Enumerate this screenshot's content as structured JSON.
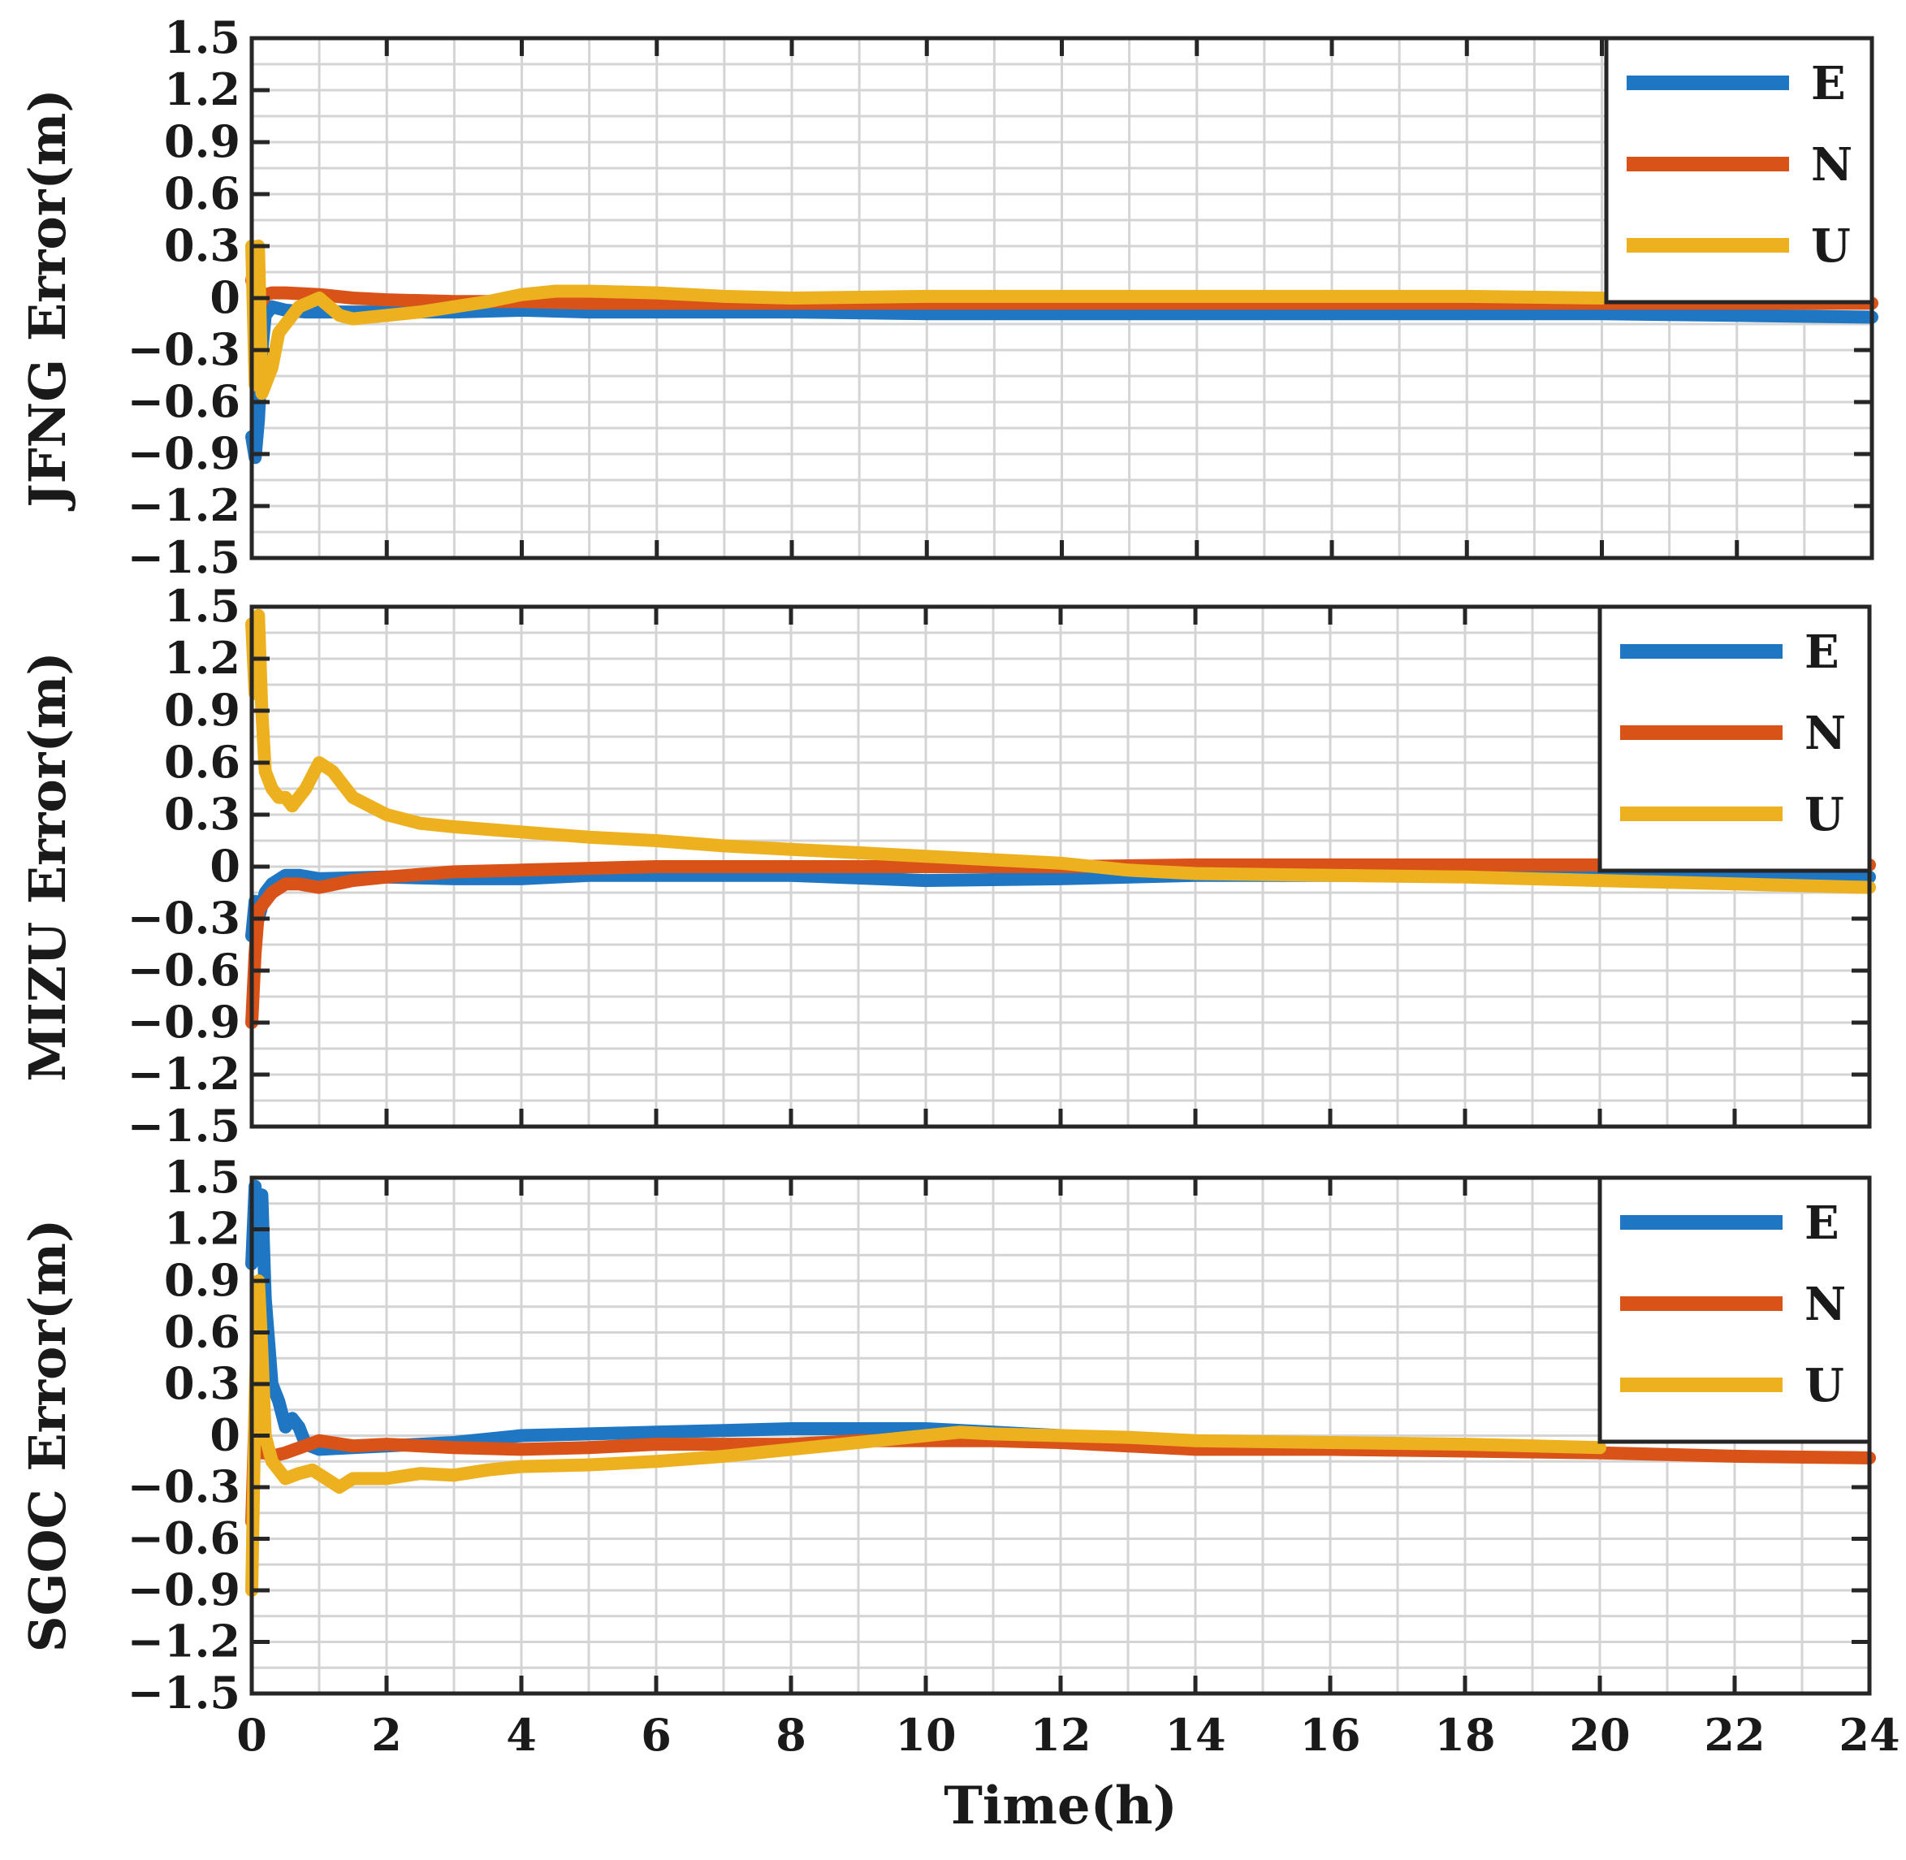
{
  "chart_data": [
    {
      "type": "line",
      "ylabel": "JFNG Error(m)",
      "xlabel": "",
      "xlim": [
        0,
        24
      ],
      "ylim": [
        -1.5,
        1.5
      ],
      "x_ticks": [
        0,
        2,
        4,
        6,
        8,
        10,
        12,
        14,
        16,
        18,
        20,
        22,
        24
      ],
      "y_ticks": [
        1.5,
        1.2,
        0.9,
        0.6,
        0.3,
        0,
        -0.3,
        -0.6,
        -0.9,
        -1.2,
        -1.5
      ],
      "y_tick_labels": [
        "1.5",
        "1.2",
        "0.9",
        "0.6",
        "0.3",
        "0",
        "−0.3",
        "−0.6",
        "−0.9",
        "−1.2",
        "−1.5"
      ],
      "x_tick_labels": [],
      "grid": true,
      "legend_position": "top-right",
      "series": [
        {
          "name": "E",
          "color": "#1f77c4",
          "x": [
            0,
            0.05,
            0.1,
            0.15,
            0.2,
            0.3,
            0.5,
            0.8,
            1.2,
            2,
            3,
            4,
            5,
            6,
            8,
            10,
            12,
            14,
            16,
            18,
            20,
            22,
            24
          ],
          "y": [
            -0.8,
            -0.92,
            -0.7,
            -0.3,
            -0.1,
            -0.05,
            -0.07,
            -0.08,
            -0.08,
            -0.08,
            -0.08,
            -0.07,
            -0.08,
            -0.08,
            -0.08,
            -0.09,
            -0.09,
            -0.09,
            -0.09,
            -0.09,
            -0.09,
            -0.1,
            -0.11
          ]
        },
        {
          "name": "N",
          "color": "#d95319",
          "x": [
            0,
            0.05,
            0.1,
            0.15,
            0.2,
            0.3,
            0.5,
            1,
            1.5,
            2,
            3,
            4,
            5,
            6,
            8,
            10,
            12,
            14,
            16,
            18,
            20,
            22,
            24
          ],
          "y": [
            0.1,
            0.22,
            0.05,
            -0.02,
            0.02,
            0.03,
            0.03,
            0.02,
            0,
            -0.01,
            -0.02,
            -0.02,
            -0.03,
            -0.03,
            -0.03,
            -0.03,
            -0.03,
            -0.03,
            -0.03,
            -0.03,
            -0.03,
            -0.03,
            -0.03
          ]
        },
        {
          "name": "U",
          "color": "#edb120",
          "x": [
            0,
            0.05,
            0.1,
            0.15,
            0.2,
            0.3,
            0.4,
            0.5,
            0.7,
            1,
            1.3,
            1.5,
            2,
            2.5,
            3,
            3.5,
            4,
            4.5,
            5,
            6,
            7,
            8,
            10,
            12,
            14,
            16,
            18,
            20
          ],
          "y": [
            0.3,
            -0.5,
            0.3,
            -0.55,
            -0.5,
            -0.4,
            -0.2,
            -0.15,
            -0.05,
            0,
            -0.1,
            -0.12,
            -0.1,
            -0.08,
            -0.05,
            -0.02,
            0.02,
            0.04,
            0.04,
            0.03,
            0.01,
            0,
            0.01,
            0.01,
            0.01,
            0.01,
            0.01,
            0
          ]
        }
      ]
    },
    {
      "type": "line",
      "ylabel": "MIZU Error(m)",
      "xlabel": "",
      "xlim": [
        0,
        24
      ],
      "ylim": [
        -1.5,
        1.5
      ],
      "x_ticks": [
        0,
        2,
        4,
        6,
        8,
        10,
        12,
        14,
        16,
        18,
        20,
        22,
        24
      ],
      "y_ticks": [
        1.5,
        1.2,
        0.9,
        0.6,
        0.3,
        0,
        -0.3,
        -0.6,
        -0.9,
        -1.2,
        -1.5
      ],
      "y_tick_labels": [
        "1.5",
        "1.2",
        "0.9",
        "0.6",
        "0.3",
        "0",
        "−0.3",
        "−0.6",
        "−0.9",
        "−1.2",
        "−1.5"
      ],
      "x_tick_labels": [],
      "grid": true,
      "legend_position": "top-right",
      "series": [
        {
          "name": "E",
          "color": "#1f77c4",
          "x": [
            0,
            0.05,
            0.1,
            0.2,
            0.3,
            0.5,
            0.7,
            1,
            2,
            3,
            4,
            5,
            6,
            8,
            10,
            12,
            14,
            16,
            18,
            20,
            22,
            24
          ],
          "y": [
            -0.4,
            -0.2,
            -0.3,
            -0.15,
            -0.1,
            -0.05,
            -0.05,
            -0.07,
            -0.06,
            -0.07,
            -0.07,
            -0.05,
            -0.05,
            -0.05,
            -0.08,
            -0.07,
            -0.05,
            -0.05,
            -0.05,
            -0.05,
            -0.05,
            -0.06
          ]
        },
        {
          "name": "N",
          "color": "#d95319",
          "x": [
            0,
            0.05,
            0.1,
            0.2,
            0.3,
            0.5,
            0.7,
            1,
            1.5,
            2,
            3,
            4,
            5,
            6,
            8,
            10,
            12,
            14,
            16,
            18,
            20,
            22,
            24
          ],
          "y": [
            -0.9,
            -0.5,
            -0.25,
            -0.2,
            -0.15,
            -0.1,
            -0.1,
            -0.12,
            -0.08,
            -0.06,
            -0.03,
            -0.02,
            -0.01,
            0,
            0,
            0,
            0,
            0.01,
            0.01,
            0.01,
            0.01,
            0.01,
            0.01
          ]
        },
        {
          "name": "U",
          "color": "#edb120",
          "x": [
            0,
            0.05,
            0.1,
            0.15,
            0.2,
            0.3,
            0.4,
            0.5,
            0.6,
            0.8,
            1,
            1.2,
            1.5,
            2,
            2.5,
            3,
            4,
            5,
            6,
            7,
            8,
            9,
            10,
            11,
            12,
            13,
            14,
            16,
            18,
            20,
            22,
            24
          ],
          "y": [
            1.4,
            1.0,
            1.45,
            0.9,
            0.55,
            0.45,
            0.4,
            0.4,
            0.35,
            0.45,
            0.6,
            0.55,
            0.4,
            0.3,
            0.25,
            0.23,
            0.2,
            0.17,
            0.15,
            0.12,
            0.1,
            0.08,
            0.06,
            0.04,
            0.02,
            -0.02,
            -0.04,
            -0.05,
            -0.06,
            -0.08,
            -0.1,
            -0.12
          ]
        }
      ]
    },
    {
      "type": "line",
      "ylabel": "SGOC Error(m)",
      "xlabel": "Time(h)",
      "xlim": [
        0,
        24
      ],
      "ylim": [
        -1.5,
        1.5
      ],
      "x_ticks": [
        0,
        2,
        4,
        6,
        8,
        10,
        12,
        14,
        16,
        18,
        20,
        22,
        24
      ],
      "y_ticks": [
        1.5,
        1.2,
        0.9,
        0.6,
        0.3,
        0,
        -0.3,
        -0.6,
        -0.9,
        -1.2,
        -1.5
      ],
      "y_tick_labels": [
        "1.5",
        "1.2",
        "0.9",
        "0.6",
        "0.3",
        "0",
        "−0.3",
        "−0.6",
        "−0.9",
        "−1.2",
        "−1.5"
      ],
      "x_tick_labels": [
        "0",
        "2",
        "4",
        "6",
        "8",
        "10",
        "12",
        "14",
        "16",
        "18",
        "20",
        "22",
        "24"
      ],
      "grid": true,
      "legend_position": "top-right",
      "series": [
        {
          "name": "E",
          "color": "#1f77c4",
          "x": [
            0,
            0.05,
            0.1,
            0.15,
            0.2,
            0.3,
            0.4,
            0.5,
            0.6,
            0.7,
            0.8,
            1,
            1.5,
            2,
            3,
            4,
            5,
            6,
            7,
            8,
            9,
            10,
            11,
            12,
            14,
            16,
            18,
            20
          ],
          "y": [
            1.0,
            1.45,
            1.1,
            1.4,
            0.8,
            0.3,
            0.2,
            0.05,
            0.1,
            0.05,
            -0.05,
            -0.08,
            -0.07,
            -0.06,
            -0.04,
            0,
            0.01,
            0.02,
            0.03,
            0.04,
            0.04,
            0.04,
            0.02,
            0,
            -0.05,
            -0.06,
            -0.07,
            -0.08
          ]
        },
        {
          "name": "N",
          "color": "#d95319",
          "x": [
            0,
            0.05,
            0.1,
            0.2,
            0.3,
            0.5,
            1,
            1.5,
            2,
            3,
            4,
            5,
            6,
            7,
            8,
            9,
            10,
            11,
            12,
            13,
            14,
            16,
            18,
            20,
            22,
            24
          ],
          "y": [
            -0.5,
            0.15,
            -0.1,
            -0.1,
            -0.12,
            -0.1,
            -0.03,
            -0.06,
            -0.05,
            -0.07,
            -0.08,
            -0.07,
            -0.05,
            -0.05,
            -0.05,
            -0.03,
            -0.03,
            -0.03,
            -0.04,
            -0.06,
            -0.08,
            -0.08,
            -0.09,
            -0.1,
            -0.12,
            -0.13
          ]
        },
        {
          "name": "U",
          "color": "#edb120",
          "x": [
            0,
            0.05,
            0.1,
            0.15,
            0.2,
            0.3,
            0.4,
            0.5,
            0.7,
            0.9,
            1.1,
            1.3,
            1.5,
            2,
            2.5,
            3,
            3.5,
            4,
            5,
            6,
            7,
            8,
            9,
            10,
            10.5,
            11,
            12,
            13,
            14,
            16,
            18,
            20
          ],
          "y": [
            -0.9,
            0.2,
            0.9,
            0.5,
            0.0,
            -0.15,
            -0.2,
            -0.25,
            -0.22,
            -0.2,
            -0.25,
            -0.3,
            -0.25,
            -0.25,
            -0.22,
            -0.23,
            -0.2,
            -0.18,
            -0.17,
            -0.15,
            -0.12,
            -0.08,
            -0.04,
            0,
            0.02,
            0.01,
            0,
            -0.01,
            -0.03,
            -0.04,
            -0.05,
            -0.07
          ]
        }
      ]
    }
  ]
}
